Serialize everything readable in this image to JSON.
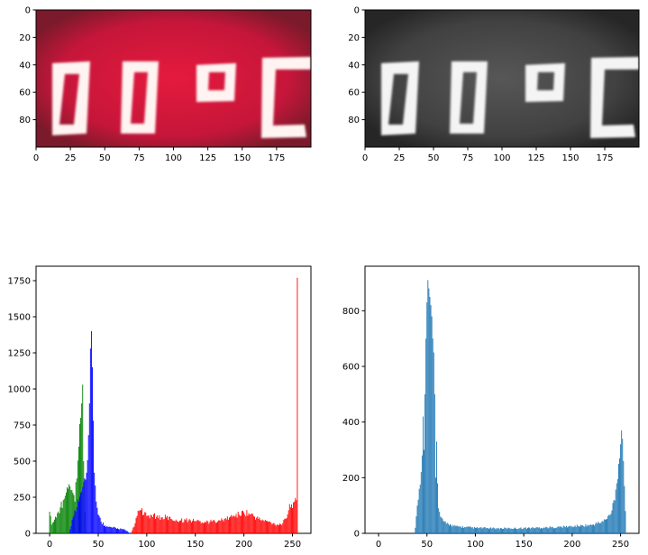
{
  "panels": [
    {
      "id": "img-rgb",
      "kind": "image",
      "display_text": "00 °C",
      "colors": {
        "background": "#8a1c30",
        "glow": "#e3173a",
        "segments": "#fff4f2"
      },
      "x_ticks": [
        "0",
        "25",
        "50",
        "75",
        "100",
        "125",
        "150",
        "175"
      ],
      "y_ticks": [
        "0",
        "20",
        "40",
        "60",
        "80"
      ]
    },
    {
      "id": "img-gray",
      "kind": "image",
      "display_text": "00 °C",
      "colors": {
        "background": "#2b2b2b",
        "glow": "#4e4e4e",
        "segments": "#f4f4f4"
      },
      "x_ticks": [
        "0",
        "25",
        "50",
        "75",
        "100",
        "125",
        "150",
        "175"
      ],
      "y_ticks": [
        "0",
        "20",
        "40",
        "60",
        "80"
      ]
    }
  ],
  "chart_data": [
    {
      "type": "bar",
      "title": "",
      "xlim": [
        -14,
        269
      ],
      "ylim": [
        0,
        1850
      ],
      "x_ticks": [
        "0",
        "50",
        "100",
        "150",
        "200",
        "250"
      ],
      "y_ticks": [
        "0",
        "250",
        "500",
        "750",
        "1000",
        "1250",
        "1500",
        "1750"
      ],
      "series": [
        {
          "color": "#008000",
          "peaks": [
            [
              0,
              0
            ],
            [
              0,
              150
            ],
            [
              2,
              60
            ],
            [
              5,
              95
            ],
            [
              8,
              140
            ],
            [
              11,
              180
            ],
            [
              14,
              230
            ],
            [
              16,
              260
            ],
            [
              18,
              320
            ],
            [
              20,
              340
            ],
            [
              22,
              300
            ],
            [
              24,
              280
            ],
            [
              26,
              220
            ],
            [
              28,
              380
            ],
            [
              30,
              600
            ],
            [
              32,
              800
            ],
            [
              33,
              900
            ],
            [
              34,
              1030
            ],
            [
              35,
              500
            ],
            [
              36,
              150
            ],
            [
              37,
              0
            ]
          ]
        },
        {
          "color": "#0000ff",
          "peaks": [
            [
              20,
              0
            ],
            [
              22,
              50
            ],
            [
              24,
              110
            ],
            [
              26,
              160
            ],
            [
              28,
              180
            ],
            [
              30,
              220
            ],
            [
              32,
              280
            ],
            [
              34,
              320
            ],
            [
              36,
              380
            ],
            [
              38,
              420
            ],
            [
              40,
              680
            ],
            [
              41,
              900
            ],
            [
              42,
              1280
            ],
            [
              43,
              1400
            ],
            [
              44,
              1150
            ],
            [
              45,
              780
            ],
            [
              46,
              420
            ],
            [
              48,
              220
            ],
            [
              50,
              130
            ],
            [
              53,
              80
            ],
            [
              57,
              55
            ],
            [
              60,
              45
            ],
            [
              65,
              40
            ],
            [
              70,
              35
            ],
            [
              75,
              30
            ],
            [
              80,
              15
            ],
            [
              82,
              0
            ]
          ]
        },
        {
          "color": "#ff0000",
          "peaks": [
            [
              84,
              0
            ],
            [
              86,
              40
            ],
            [
              88,
              70
            ],
            [
              90,
              120
            ],
            [
              92,
              155
            ],
            [
              94,
              160
            ],
            [
              97,
              130
            ],
            [
              100,
              120
            ],
            [
              105,
              125
            ],
            [
              110,
              115
            ],
            [
              115,
              110
            ],
            [
              120,
              110
            ],
            [
              125,
              100
            ],
            [
              130,
              95
            ],
            [
              135,
              90
            ],
            [
              140,
              92
            ],
            [
              145,
              90
            ],
            [
              150,
              85
            ],
            [
              155,
              85
            ],
            [
              160,
              80
            ],
            [
              165,
              80
            ],
            [
              170,
              85
            ],
            [
              175,
              90
            ],
            [
              180,
              100
            ],
            [
              185,
              110
            ],
            [
              190,
              120
            ],
            [
              195,
              130
            ],
            [
              200,
              145
            ],
            [
              205,
              140
            ],
            [
              210,
              120
            ],
            [
              215,
              100
            ],
            [
              220,
              90
            ],
            [
              225,
              80
            ],
            [
              230,
              70
            ],
            [
              235,
              60
            ],
            [
              240,
              70
            ],
            [
              243,
              100
            ],
            [
              246,
              160
            ],
            [
              249,
              200
            ],
            [
              252,
              220
            ],
            [
              254,
              230
            ],
            [
              255,
              1770
            ]
          ]
        }
      ]
    },
    {
      "type": "bar",
      "title": "",
      "xlim": [
        -14,
        269
      ],
      "ylim": [
        0,
        960
      ],
      "x_ticks": [
        "0",
        "50",
        "100",
        "150",
        "200",
        "250"
      ],
      "y_ticks": [
        "0",
        "200",
        "400",
        "600",
        "800"
      ],
      "series": [
        {
          "color": "#1f77b4",
          "peaks": [
            [
              37,
              0
            ],
            [
              38,
              20
            ],
            [
              40,
              100
            ],
            [
              42,
              160
            ],
            [
              44,
              220
            ],
            [
              45,
              280
            ],
            [
              46,
              420
            ],
            [
              47,
              300
            ],
            [
              48,
              500
            ],
            [
              49,
              700
            ],
            [
              50,
              830
            ],
            [
              51,
              910
            ],
            [
              52,
              880
            ],
            [
              53,
              850
            ],
            [
              54,
              820
            ],
            [
              55,
              780
            ],
            [
              56,
              700
            ],
            [
              57,
              650
            ],
            [
              58,
              500
            ],
            [
              59,
              200
            ],
            [
              60,
              330
            ],
            [
              61,
              180
            ],
            [
              62,
              90
            ],
            [
              64,
              60
            ],
            [
              67,
              45
            ],
            [
              70,
              35
            ],
            [
              75,
              30
            ],
            [
              80,
              25
            ],
            [
              90,
              22
            ],
            [
              100,
              20
            ],
            [
              120,
              18
            ],
            [
              140,
              18
            ],
            [
              160,
              20
            ],
            [
              180,
              22
            ],
            [
              200,
              25
            ],
            [
              210,
              28
            ],
            [
              220,
              30
            ],
            [
              230,
              40
            ],
            [
              235,
              50
            ],
            [
              240,
              70
            ],
            [
              243,
              120
            ],
            [
              246,
              180
            ],
            [
              248,
              250
            ],
            [
              250,
              320
            ],
            [
              251,
              370
            ],
            [
              252,
              340
            ],
            [
              253,
              260
            ],
            [
              254,
              170
            ],
            [
              255,
              80
            ],
            [
              256,
              0
            ]
          ]
        }
      ]
    }
  ]
}
